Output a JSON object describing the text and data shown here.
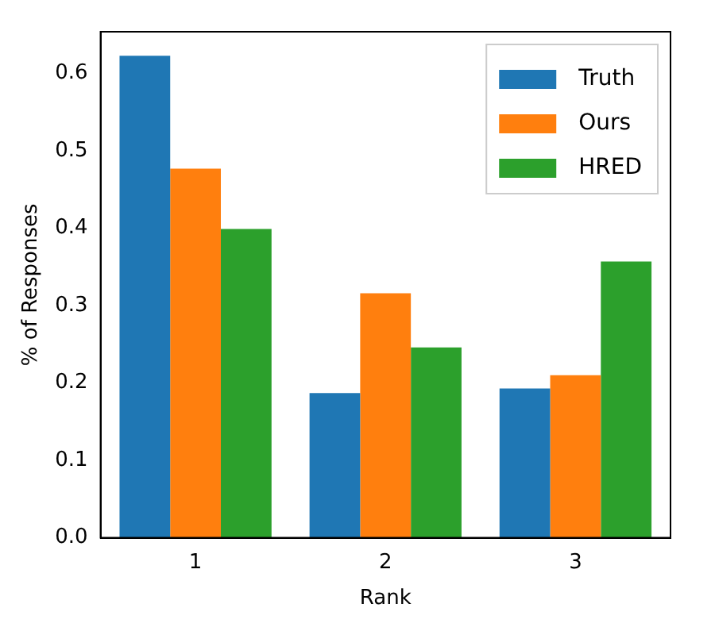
{
  "chart_data": {
    "type": "bar",
    "xlabel": "Rank",
    "ylabel": "% of Responses",
    "categories": [
      "1",
      "2",
      "3"
    ],
    "series": [
      {
        "name": "Truth",
        "color": "#1f77b4",
        "values": [
          0.623,
          0.187,
          0.193
        ]
      },
      {
        "name": "Ours",
        "color": "#ff7f0e",
        "values": [
          0.477,
          0.316,
          0.21
        ]
      },
      {
        "name": "HRED",
        "color": "#2ca02c",
        "values": [
          0.399,
          0.246,
          0.357
        ]
      }
    ],
    "ylim": [
      0,
      0.654
    ],
    "yticks": [
      {
        "value": 0,
        "label": "0.0"
      },
      0.1,
      0.2,
      0.3,
      0.4,
      0.5,
      0.6
    ],
    "grid": false,
    "legend": "top right"
  }
}
